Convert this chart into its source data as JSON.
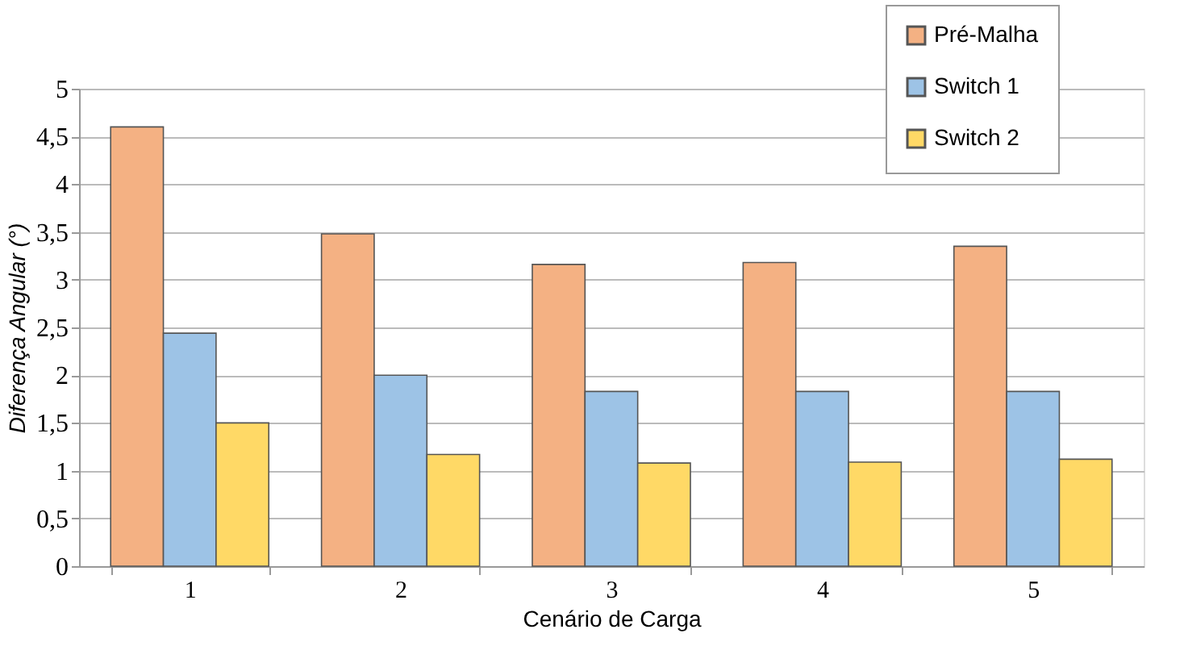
{
  "chart_data": {
    "type": "bar",
    "xlabel": "Cenário de Carga",
    "ylabel": "Diferença Angular (°)",
    "categories": [
      "1",
      "2",
      "3",
      "4",
      "5"
    ],
    "series": [
      {
        "name": "Pré-Malha",
        "color": "#f4b183",
        "values": [
          4.6,
          3.48,
          3.16,
          3.18,
          3.35
        ]
      },
      {
        "name": "Switch 1",
        "color": "#9dc3e6",
        "values": [
          2.44,
          2.0,
          1.83,
          1.83,
          1.83
        ]
      },
      {
        "name": "Switch 2",
        "color": "#ffd966",
        "values": [
          1.5,
          1.17,
          1.08,
          1.09,
          1.12
        ]
      }
    ],
    "ylim": [
      0,
      5
    ],
    "yticks": [
      0,
      {
        "value": 0.5,
        "label": "0,5"
      },
      1,
      {
        "value": 1.5,
        "label": "1,5"
      },
      2,
      {
        "value": 2.5,
        "label": "2,5"
      },
      3,
      {
        "value": 3.5,
        "label": "3,5"
      },
      4,
      {
        "value": 4.5,
        "label": "4,5"
      },
      5
    ],
    "grid": "y",
    "legend": "top right"
  }
}
